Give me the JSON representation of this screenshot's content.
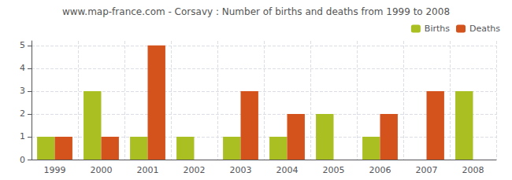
{
  "chart_data": {
    "type": "bar",
    "title": "www.map-france.com - Corsavy : Number of births and deaths from 1999 to 2008",
    "categories": [
      "1999",
      "2000",
      "2001",
      "2002",
      "2003",
      "2004",
      "2005",
      "2006",
      "2007",
      "2008"
    ],
    "series": [
      {
        "name": "Births",
        "color": "#aabf22",
        "values": [
          1,
          3,
          1,
          1,
          1,
          1,
          2,
          1,
          0,
          3
        ]
      },
      {
        "name": "Deaths",
        "color": "#d4531c",
        "values": [
          1,
          1,
          5,
          0,
          3,
          2,
          0,
          2,
          3,
          0
        ]
      }
    ],
    "ylim": [
      0,
      5.2
    ],
    "yticks": [
      0,
      1,
      2,
      3,
      4,
      5
    ],
    "grid": true,
    "legend": "upper right"
  }
}
